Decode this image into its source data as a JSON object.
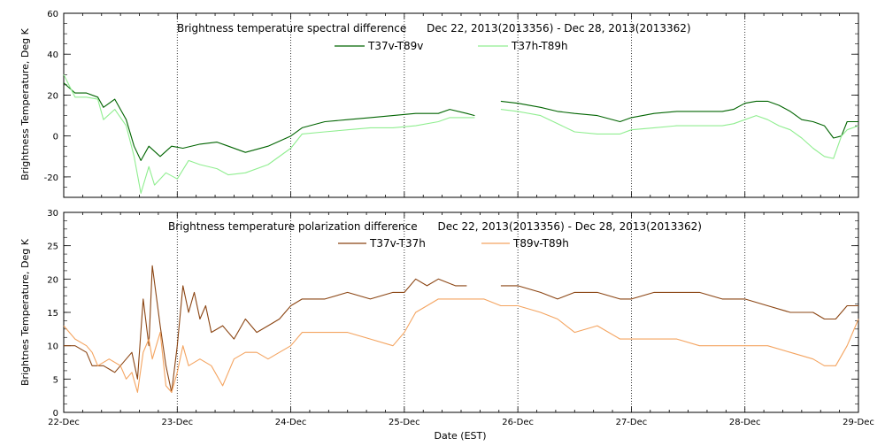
{
  "colors": {
    "spectral_v": "#006400",
    "spectral_h": "#90ee90",
    "pol_37": "#8b4513",
    "pol_89": "#f4a460",
    "grid": "#000000"
  },
  "x_axis": {
    "label": "Date (EST)",
    "ticks": [
      "22-Dec",
      "23-Dec",
      "24-Dec",
      "25-Dec",
      "26-Dec",
      "27-Dec",
      "28-Dec",
      "29-Dec"
    ]
  },
  "chart_data": [
    {
      "type": "line",
      "title": "Brightness temperature spectral difference      Dec 22, 2013(2013356) - Dec 28, 2013(2013362)",
      "ylabel": "Brightness Temperature, Deg K",
      "xlim": [
        0,
        7
      ],
      "ylim": [
        -30,
        60
      ],
      "yticks": [
        -20,
        0,
        20,
        40,
        60
      ],
      "grid": "vertical dotted lines at each day",
      "legend": "top-center",
      "series": [
        {
          "name": "T37v-T89v",
          "color": "#006400",
          "points": [
            [
              0.0,
              26
            ],
            [
              0.1,
              21
            ],
            [
              0.2,
              21
            ],
            [
              0.3,
              19
            ],
            [
              0.35,
              14
            ],
            [
              0.45,
              18
            ],
            [
              0.55,
              8
            ],
            [
              0.62,
              -5
            ],
            [
              0.68,
              -12
            ],
            [
              0.75,
              -5
            ],
            [
              0.85,
              -10
            ],
            [
              0.95,
              -5
            ],
            [
              1.05,
              -6
            ],
            [
              1.2,
              -4
            ],
            [
              1.35,
              -3
            ],
            [
              1.45,
              -5
            ],
            [
              1.6,
              -8
            ],
            [
              1.8,
              -5
            ],
            [
              2.0,
              0
            ],
            [
              2.1,
              4
            ],
            [
              2.3,
              7
            ],
            [
              2.5,
              8
            ],
            [
              2.7,
              9
            ],
            [
              2.9,
              10
            ],
            [
              3.1,
              11
            ],
            [
              3.3,
              11
            ],
            [
              3.4,
              13
            ],
            [
              3.55,
              11
            ],
            [
              3.62,
              10
            ],
            null,
            [
              3.85,
              17
            ],
            [
              4.0,
              16
            ],
            [
              4.2,
              14
            ],
            [
              4.35,
              12
            ],
            [
              4.5,
              11
            ],
            [
              4.7,
              10
            ],
            [
              4.9,
              7
            ],
            [
              5.0,
              9
            ],
            [
              5.2,
              11
            ],
            [
              5.4,
              12
            ],
            [
              5.6,
              12
            ],
            [
              5.8,
              12
            ],
            [
              5.9,
              13
            ],
            [
              6.0,
              16
            ],
            [
              6.1,
              17
            ],
            [
              6.2,
              17
            ],
            [
              6.3,
              15
            ],
            [
              6.4,
              12
            ],
            [
              6.5,
              8
            ],
            [
              6.6,
              7
            ],
            [
              6.7,
              5
            ],
            [
              6.78,
              -1
            ],
            [
              6.85,
              0
            ],
            [
              6.9,
              7
            ],
            [
              7.0,
              7
            ]
          ]
        },
        {
          "name": "T37h-T89h",
          "color": "#90ee90",
          "points": [
            [
              0.0,
              30
            ],
            [
              0.1,
              19
            ],
            [
              0.2,
              19
            ],
            [
              0.3,
              18
            ],
            [
              0.35,
              8
            ],
            [
              0.45,
              13
            ],
            [
              0.55,
              5
            ],
            [
              0.62,
              -10
            ],
            [
              0.68,
              -28
            ],
            [
              0.75,
              -15
            ],
            [
              0.8,
              -24
            ],
            [
              0.9,
              -18
            ],
            [
              1.0,
              -21
            ],
            [
              1.1,
              -12
            ],
            [
              1.2,
              -14
            ],
            [
              1.35,
              -16
            ],
            [
              1.45,
              -19
            ],
            [
              1.6,
              -18
            ],
            [
              1.8,
              -14
            ],
            [
              2.0,
              -6
            ],
            [
              2.1,
              1
            ],
            [
              2.3,
              2
            ],
            [
              2.5,
              3
            ],
            [
              2.7,
              4
            ],
            [
              2.9,
              4
            ],
            [
              3.1,
              5
            ],
            [
              3.3,
              7
            ],
            [
              3.4,
              9
            ],
            [
              3.55,
              9
            ],
            [
              3.62,
              9
            ],
            null,
            [
              3.85,
              13
            ],
            [
              4.0,
              12
            ],
            [
              4.2,
              10
            ],
            [
              4.35,
              6
            ],
            [
              4.5,
              2
            ],
            [
              4.7,
              1
            ],
            [
              4.9,
              1
            ],
            [
              5.0,
              3
            ],
            [
              5.2,
              4
            ],
            [
              5.4,
              5
            ],
            [
              5.6,
              5
            ],
            [
              5.8,
              5
            ],
            [
              5.9,
              6
            ],
            [
              6.0,
              8
            ],
            [
              6.1,
              10
            ],
            [
              6.2,
              8
            ],
            [
              6.3,
              5
            ],
            [
              6.4,
              3
            ],
            [
              6.5,
              -1
            ],
            [
              6.6,
              -6
            ],
            [
              6.7,
              -10
            ],
            [
              6.78,
              -11
            ],
            [
              6.85,
              0
            ],
            [
              6.9,
              3
            ],
            [
              7.0,
              5
            ]
          ]
        }
      ]
    },
    {
      "type": "line",
      "title": "Brightness temperature polarization difference      Dec 22, 2013(2013356) - Dec 28, 2013(2013362)",
      "ylabel": "Brightnes Temperature, Deg K",
      "xlim": [
        0,
        7
      ],
      "ylim": [
        0,
        30
      ],
      "yticks": [
        0,
        5,
        10,
        15,
        20,
        25,
        30
      ],
      "grid": "vertical dotted lines at each day",
      "legend": "top-center",
      "series": [
        {
          "name": "T37v-T37h",
          "color": "#8b4513",
          "points": [
            [
              0.0,
              10
            ],
            [
              0.1,
              10
            ],
            [
              0.2,
              9
            ],
            [
              0.25,
              7
            ],
            [
              0.35,
              7
            ],
            [
              0.45,
              6
            ],
            [
              0.55,
              8
            ],
            [
              0.6,
              9
            ],
            [
              0.65,
              5
            ],
            [
              0.7,
              17
            ],
            [
              0.75,
              10
            ],
            [
              0.78,
              22
            ],
            [
              0.85,
              13
            ],
            [
              0.9,
              7
            ],
            [
              0.95,
              3
            ],
            [
              1.0,
              10
            ],
            [
              1.05,
              19
            ],
            [
              1.1,
              15
            ],
            [
              1.15,
              18
            ],
            [
              1.2,
              14
            ],
            [
              1.25,
              16
            ],
            [
              1.3,
              12
            ],
            [
              1.4,
              13
            ],
            [
              1.5,
              11
            ],
            [
              1.6,
              14
            ],
            [
              1.7,
              12
            ],
            [
              1.8,
              13
            ],
            [
              1.9,
              14
            ],
            [
              2.0,
              16
            ],
            [
              2.1,
              17
            ],
            [
              2.3,
              17
            ],
            [
              2.5,
              18
            ],
            [
              2.7,
              17
            ],
            [
              2.9,
              18
            ],
            [
              3.0,
              18
            ],
            [
              3.1,
              20
            ],
            [
              3.2,
              19
            ],
            [
              3.3,
              20
            ],
            [
              3.45,
              19
            ],
            [
              3.55,
              19
            ],
            null,
            [
              3.85,
              19
            ],
            [
              4.0,
              19
            ],
            [
              4.2,
              18
            ],
            [
              4.35,
              17
            ],
            [
              4.5,
              18
            ],
            [
              4.7,
              18
            ],
            [
              4.9,
              17
            ],
            [
              5.0,
              17
            ],
            [
              5.2,
              18
            ],
            [
              5.4,
              18
            ],
            [
              5.6,
              18
            ],
            [
              5.8,
              17
            ],
            [
              6.0,
              17
            ],
            [
              6.2,
              16
            ],
            [
              6.4,
              15
            ],
            [
              6.6,
              15
            ],
            [
              6.7,
              14
            ],
            [
              6.8,
              14
            ],
            [
              6.9,
              16
            ],
            [
              7.0,
              16
            ]
          ]
        },
        {
          "name": "T89v-T89h",
          "color": "#f4a460",
          "points": [
            [
              0.0,
              13
            ],
            [
              0.1,
              11
            ],
            [
              0.2,
              10
            ],
            [
              0.25,
              9
            ],
            [
              0.3,
              7
            ],
            [
              0.4,
              8
            ],
            [
              0.5,
              7
            ],
            [
              0.55,
              5
            ],
            [
              0.6,
              6
            ],
            [
              0.65,
              3
            ],
            [
              0.7,
              9
            ],
            [
              0.75,
              11
            ],
            [
              0.78,
              8
            ],
            [
              0.85,
              12
            ],
            [
              0.9,
              4
            ],
            [
              0.95,
              3
            ],
            [
              1.0,
              6
            ],
            [
              1.05,
              10
            ],
            [
              1.1,
              7
            ],
            [
              1.2,
              8
            ],
            [
              1.3,
              7
            ],
            [
              1.4,
              4
            ],
            [
              1.5,
              8
            ],
            [
              1.6,
              9
            ],
            [
              1.7,
              9
            ],
            [
              1.8,
              8
            ],
            [
              1.9,
              9
            ],
            [
              2.0,
              10
            ],
            [
              2.1,
              12
            ],
            [
              2.3,
              12
            ],
            [
              2.5,
              12
            ],
            [
              2.7,
              11
            ],
            [
              2.9,
              10
            ],
            [
              3.0,
              12
            ],
            [
              3.1,
              15
            ],
            [
              3.2,
              16
            ],
            [
              3.3,
              17
            ],
            [
              3.45,
              17
            ],
            [
              3.55,
              17
            ],
            [
              3.7,
              17
            ],
            [
              3.85,
              16
            ],
            [
              4.0,
              16
            ],
            [
              4.2,
              15
            ],
            [
              4.35,
              14
            ],
            [
              4.5,
              12
            ],
            [
              4.7,
              13
            ],
            [
              4.9,
              11
            ],
            [
              5.0,
              11
            ],
            [
              5.2,
              11
            ],
            [
              5.4,
              11
            ],
            [
              5.6,
              10
            ],
            [
              5.8,
              10
            ],
            [
              6.0,
              10
            ],
            [
              6.2,
              10
            ],
            [
              6.4,
              9
            ],
            [
              6.6,
              8
            ],
            [
              6.7,
              7
            ],
            [
              6.8,
              7
            ],
            [
              6.9,
              10
            ],
            [
              7.0,
              14
            ]
          ]
        }
      ]
    }
  ]
}
